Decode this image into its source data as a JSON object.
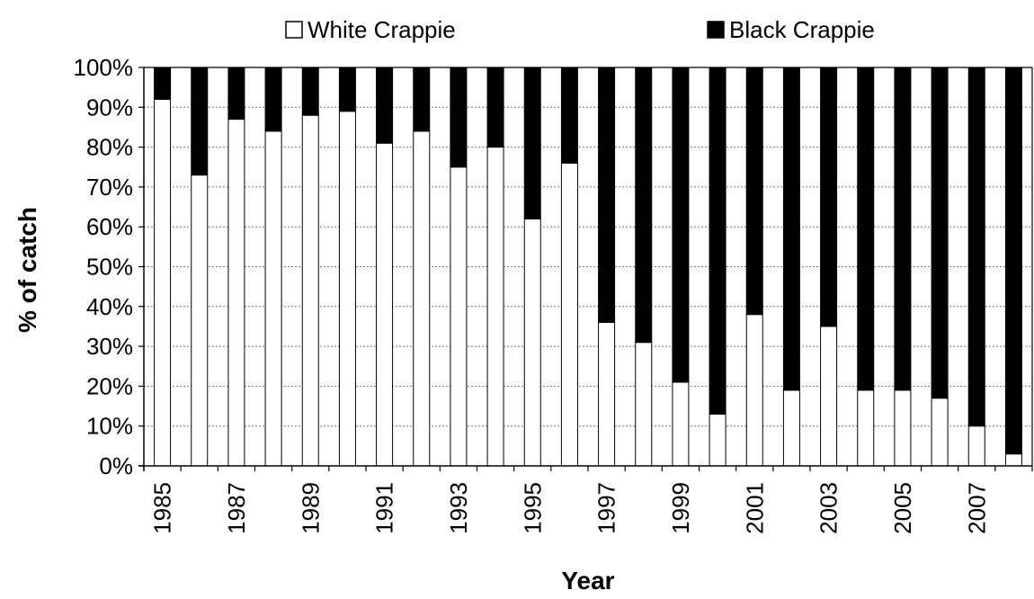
{
  "chart_data": {
    "type": "bar",
    "stacked": true,
    "percent_stacked": true,
    "categories": [
      "1985",
      "1986",
      "1987",
      "1988",
      "1989",
      "1990",
      "1991",
      "1992",
      "1993",
      "1994",
      "1995",
      "1996",
      "1997",
      "1998",
      "1999",
      "2000",
      "2001",
      "2002",
      "2003",
      "2004",
      "2005",
      "2006",
      "2007",
      "2008"
    ],
    "tick_labels_x": [
      "1985",
      "1987",
      "1989",
      "1991",
      "1993",
      "1995",
      "1997",
      "1999",
      "2001",
      "2003",
      "2005",
      "2007"
    ],
    "series": [
      {
        "name": "White Crappie",
        "color": "#ffffff",
        "values": [
          92,
          73,
          87,
          84,
          88,
          89,
          81,
          84,
          75,
          80,
          62,
          76,
          36,
          31,
          21,
          13,
          38,
          19,
          35,
          19,
          19,
          17,
          10,
          3
        ]
      },
      {
        "name": "Black Crappie",
        "color": "#000000",
        "values": [
          8,
          27,
          13,
          16,
          12,
          11,
          19,
          16,
          25,
          20,
          38,
          24,
          64,
          69,
          79,
          87,
          62,
          81,
          65,
          81,
          81,
          83,
          90,
          97
        ]
      }
    ],
    "xlabel": "Year",
    "ylabel": "% of catch",
    "ylim": [
      0,
      100
    ],
    "yticks": [
      "0%",
      "10%",
      "20%",
      "30%",
      "40%",
      "50%",
      "60%",
      "70%",
      "80%",
      "90%",
      "100%"
    ],
    "grid": true,
    "legend_position": "top"
  }
}
